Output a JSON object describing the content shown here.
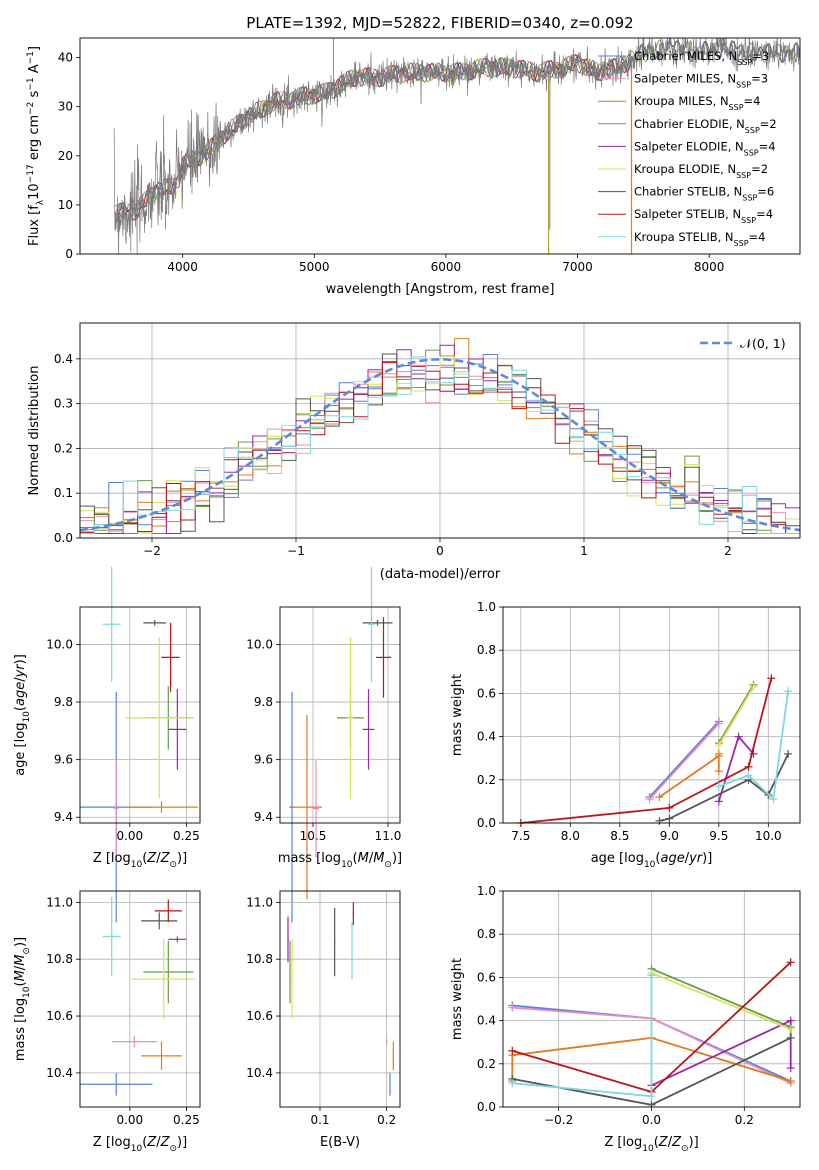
{
  "title": "PLATE=1392, MJD=52822, FIBERID=0340, z=0.092",
  "models": [
    {
      "key": "chabrier_miles",
      "label": "Chabrier MILES, N",
      "sub": "SSP",
      "suffix": "=3",
      "color": "#5b7fdc"
    },
    {
      "key": "salpeter_miles",
      "label": "Salpeter MILES, N",
      "sub": "SSP",
      "suffix": "=3",
      "color": "#e58fc1"
    },
    {
      "key": "kroupa_miles",
      "label": "Kroupa MILES, N",
      "sub": "SSP",
      "suffix": "=4",
      "color": "#e07b1f"
    },
    {
      "key": "chabrier_elodie",
      "label": "Chabrier ELODIE, N",
      "sub": "SSP",
      "suffix": "=2",
      "color": "#6a9a48"
    },
    {
      "key": "salpeter_elodie",
      "label": "Salpeter ELODIE, N",
      "sub": "SSP",
      "suffix": "=4",
      "color": "#9b27ad"
    },
    {
      "key": "kroupa_elodie",
      "label": "Kroupa ELODIE, N",
      "sub": "SSP",
      "suffix": "=2",
      "color": "#d8e25a"
    },
    {
      "key": "chabrier_stelib",
      "label": "Chabrier STELIB, N",
      "sub": "SSP",
      "suffix": "=6",
      "color": "#555555"
    },
    {
      "key": "salpeter_stelib",
      "label": "Salpeter STELIB, N",
      "sub": "SSP",
      "suffix": "=4",
      "color": "#b5171b"
    },
    {
      "key": "kroupa_stelib",
      "label": "Kroupa STELIB, N",
      "sub": "SSP",
      "suffix": "=4",
      "color": "#7fd7dd"
    }
  ],
  "chart_data": [
    {
      "id": "spectrum",
      "type": "line",
      "title": "PLATE=1392, MJD=52822, FIBERID=0340, z=0.092",
      "xlabel": "wavelength [Angstrom, rest frame]",
      "ylabel": "Flux [f_λ 10^-17 erg cm^-2 s^-1 A^-1]",
      "xlim": [
        3220,
        8690
      ],
      "ylim": [
        0,
        44
      ],
      "xticks": [
        4000,
        5000,
        6000,
        7000,
        8000
      ],
      "yticks": [
        0,
        10,
        20,
        30,
        40
      ],
      "continuum": [
        [
          3450,
          8
        ],
        [
          3650,
          9
        ],
        [
          3800,
          13
        ],
        [
          3950,
          14
        ],
        [
          4000,
          18
        ],
        [
          4200,
          21
        ],
        [
          4300,
          24
        ],
        [
          4500,
          28
        ],
        [
          4700,
          31
        ],
        [
          4900,
          32
        ],
        [
          5100,
          33
        ],
        [
          5300,
          36
        ],
        [
          5500,
          36
        ],
        [
          5700,
          37
        ],
        [
          5900,
          37
        ],
        [
          6100,
          37
        ],
        [
          6300,
          38
        ],
        [
          6500,
          38
        ],
        [
          6700,
          37
        ],
        [
          6900,
          38
        ],
        [
          7000,
          39
        ],
        [
          7150,
          37
        ],
        [
          7300,
          38
        ],
        [
          7500,
          41
        ],
        [
          7700,
          42
        ],
        [
          7900,
          41
        ],
        [
          8100,
          42
        ],
        [
          8300,
          41
        ],
        [
          8500,
          41
        ],
        [
          8690,
          41
        ]
      ],
      "spikes": [
        [
          5145,
          44
        ],
        [
          6780,
          36
        ],
        [
          7410,
          36
        ],
        [
          3870,
          5
        ],
        [
          6790,
          5
        ]
      ],
      "grid": false,
      "legend": "upper right"
    },
    {
      "id": "residual_hist",
      "type": "histogram",
      "xlabel": "(data-model)/error",
      "ylabel": "Normed distribution",
      "xlim": [
        -2.5,
        2.5
      ],
      "ylim": [
        0,
        0.48
      ],
      "xticks": [
        -2,
        -1,
        0,
        1,
        2
      ],
      "yticks": [
        0.0,
        0.1,
        0.2,
        0.3,
        0.4
      ],
      "bin_width": 0.1,
      "reference": "N(0,1)",
      "reference_label": "𝒩(0, 1)",
      "grid": true,
      "legend": "upper right"
    },
    {
      "id": "age_vs_Z",
      "type": "scatter",
      "xlabel": "Z [log10(Z/Z⊙)]",
      "ylabel": "age  [log10(age/yr)]",
      "xlim": [
        -0.22,
        0.31
      ],
      "ylim": [
        9.38,
        10.13
      ],
      "xticks": [
        0.0,
        0.25
      ],
      "yticks": [
        9.4,
        9.6,
        9.8,
        10.0
      ],
      "grid": true,
      "points": [
        {
          "model": "chabrier_miles",
          "x": -0.06,
          "y": 9.435,
          "xerr": 0.16,
          "yerr": 0.4
        },
        {
          "model": "salpeter_miles",
          "x": -0.06,
          "y": 9.43,
          "xerr": 0.01,
          "yerr": 0.17
        },
        {
          "model": "kroupa_miles",
          "x": 0.14,
          "y": 9.435,
          "xerr": 0.16,
          "yerr": 0.02
        },
        {
          "model": "chabrier_elodie",
          "x": 0.17,
          "y": 9.745,
          "xerr": 0.11,
          "yerr": 0.11
        },
        {
          "model": "salpeter_elodie",
          "x": 0.21,
          "y": 9.705,
          "xerr": 0.04,
          "yerr": 0.14
        },
        {
          "model": "kroupa_elodie",
          "x": 0.13,
          "y": 9.745,
          "xerr": 0.15,
          "yerr": 0.28
        },
        {
          "model": "chabrier_stelib",
          "x": 0.11,
          "y": 10.075,
          "xerr": 0.05,
          "yerr": 0.01
        },
        {
          "model": "salpeter_stelib",
          "x": 0.18,
          "y": 9.955,
          "xerr": 0.04,
          "yerr": 0.12
        },
        {
          "model": "kroupa_stelib",
          "x": -0.08,
          "y": 10.07,
          "xerr": 0.04,
          "yerr": 0.2
        }
      ]
    },
    {
      "id": "age_vs_mass",
      "type": "scatter",
      "xlabel": "mass [log10(M/M⊙)]",
      "ylabel": "",
      "xlim": [
        10.28,
        11.08
      ],
      "ylim": [
        9.38,
        10.13
      ],
      "xticks": [
        10.5,
        11.0
      ],
      "yticks": [
        9.4,
        9.6,
        9.8,
        10.0
      ],
      "grid": true,
      "points": [
        {
          "model": "chabrier_miles",
          "x": 10.36,
          "y": 9.435,
          "xerr": 0.02,
          "yerr": 0.4
        },
        {
          "model": "salpeter_miles",
          "x": 10.52,
          "y": 9.43,
          "xerr": 0.02,
          "yerr": 0.17
        },
        {
          "model": "kroupa_miles",
          "x": 10.46,
          "y": 9.435,
          "xerr": 0.1,
          "yerr": 0.32
        },
        {
          "model": "chabrier_elodie",
          "x": 10.75,
          "y": 9.745,
          "xerr": 0.09,
          "yerr": 0.1
        },
        {
          "model": "salpeter_elodie",
          "x": 10.87,
          "y": 9.705,
          "xerr": 0.04,
          "yerr": 0.14
        },
        {
          "model": "kroupa_elodie",
          "x": 10.75,
          "y": 9.745,
          "xerr": 0.02,
          "yerr": 0.28
        },
        {
          "model": "chabrier_stelib",
          "x": 10.93,
          "y": 10.075,
          "xerr": 0.1,
          "yerr": 0.01
        },
        {
          "model": "salpeter_stelib",
          "x": 10.97,
          "y": 9.955,
          "xerr": 0.05,
          "yerr": 0.14
        },
        {
          "model": "kroupa_stelib",
          "x": 10.89,
          "y": 10.07,
          "xerr": 0.02,
          "yerr": 0.2
        }
      ]
    },
    {
      "id": "massweight_vs_age",
      "type": "line",
      "xlabel": "age  [log10(age/yr)]",
      "ylabel": "mass weight",
      "xlim": [
        7.32,
        10.32
      ],
      "ylim": [
        0,
        1
      ],
      "xticks": [
        7.5,
        8.0,
        8.5,
        9.0,
        9.5,
        10.0
      ],
      "yticks": [
        0.0,
        0.2,
        0.4,
        0.6,
        0.8,
        1.0
      ],
      "grid": true,
      "series": [
        {
          "model": "chabrier_miles",
          "x": [
            8.8,
            9.5
          ],
          "y": [
            0.12,
            0.47
          ]
        },
        {
          "model": "salpeter_miles",
          "x": [
            8.8,
            9.5
          ],
          "y": [
            0.11,
            0.46
          ]
        },
        {
          "model": "kroupa_miles",
          "x": [
            8.9,
            9.5,
            9.5,
            9.5
          ],
          "y": [
            0.12,
            0.31,
            0.24,
            0.32
          ]
        },
        {
          "model": "chabrier_elodie",
          "x": [
            9.5,
            9.85
          ],
          "y": [
            0.37,
            0.64
          ]
        },
        {
          "model": "salpeter_elodie",
          "x": [
            9.5,
            9.7,
            9.85
          ],
          "y": [
            0.1,
            0.4,
            0.32
          ]
        },
        {
          "model": "kroupa_elodie",
          "x": [
            9.5,
            9.85
          ],
          "y": [
            0.36,
            0.63
          ]
        },
        {
          "model": "chabrier_stelib",
          "x": [
            8.9,
            9.0,
            9.8,
            10.0,
            10.2
          ],
          "y": [
            0.01,
            0.02,
            0.2,
            0.13,
            0.32
          ]
        },
        {
          "model": "salpeter_stelib",
          "x": [
            7.5,
            9.0,
            9.8,
            10.03
          ],
          "y": [
            0.0,
            0.07,
            0.26,
            0.67
          ]
        },
        {
          "model": "kroupa_stelib",
          "x": [
            9.5,
            9.8,
            10.05,
            10.2
          ],
          "y": [
            0.17,
            0.22,
            0.11,
            0.61
          ]
        }
      ]
    },
    {
      "id": "mass_vs_Z",
      "type": "scatter",
      "xlabel": "Z [log10(Z/Z⊙)]",
      "ylabel": "mass [log10(M/M⊙)]",
      "xlim": [
        -0.22,
        0.31
      ],
      "ylim": [
        10.28,
        11.04
      ],
      "xticks": [
        0.0,
        0.25
      ],
      "yticks": [
        10.4,
        10.6,
        10.8,
        11.0
      ],
      "grid": true,
      "points": [
        {
          "model": "chabrier_miles",
          "x": -0.06,
          "y": 10.36,
          "xerr": 0.16,
          "yerr": 0.04
        },
        {
          "model": "salpeter_miles",
          "x": 0.02,
          "y": 10.51,
          "xerr": 0.1,
          "yerr": 0.02
        },
        {
          "model": "kroupa_miles",
          "x": 0.14,
          "y": 10.46,
          "xerr": 0.09,
          "yerr": 0.05
        },
        {
          "model": "chabrier_elodie",
          "x": 0.17,
          "y": 10.755,
          "xerr": 0.11,
          "yerr": 0.11
        },
        {
          "model": "salpeter_elodie",
          "x": 0.21,
          "y": 10.87,
          "xerr": 0.04,
          "yerr": 0.01
        },
        {
          "model": "kroupa_elodie",
          "x": 0.15,
          "y": 10.73,
          "xerr": 0.14,
          "yerr": 0.14
        },
        {
          "model": "chabrier_stelib",
          "x": 0.13,
          "y": 10.935,
          "xerr": 0.08,
          "yerr": 0.03
        },
        {
          "model": "salpeter_stelib",
          "x": 0.17,
          "y": 10.97,
          "xerr": 0.06,
          "yerr": 0.04
        },
        {
          "model": "kroupa_stelib",
          "x": -0.08,
          "y": 10.88,
          "xerr": 0.04,
          "yerr": 0.14
        }
      ]
    },
    {
      "id": "mass_vs_ebv",
      "type": "scatter",
      "xlabel": "E(B-V)",
      "ylabel": "",
      "xlim": [
        0.04,
        0.22
      ],
      "ylim": [
        10.28,
        11.04
      ],
      "xticks": [
        0.1,
        0.2
      ],
      "yticks": [
        10.4,
        10.6,
        10.8,
        11.0
      ],
      "grid": true,
      "points": [
        {
          "model": "chabrier_miles",
          "x": 0.205,
          "y": 10.36,
          "xerr": 0.001,
          "yerr": 0.04
        },
        {
          "model": "salpeter_miles",
          "x": 0.2,
          "y": 10.51,
          "xerr": 0.001,
          "yerr": 0.01
        },
        {
          "model": "kroupa_miles",
          "x": 0.21,
          "y": 10.46,
          "xerr": 0.001,
          "yerr": 0.05
        },
        {
          "model": "chabrier_elodie",
          "x": 0.055,
          "y": 10.755,
          "xerr": 0.001,
          "yerr": 0.11
        },
        {
          "model": "salpeter_elodie",
          "x": 0.052,
          "y": 10.87,
          "xerr": 0.001,
          "yerr": 0.08
        },
        {
          "model": "kroupa_elodie",
          "x": 0.058,
          "y": 10.73,
          "xerr": 0.001,
          "yerr": 0.14
        },
        {
          "model": "chabrier_stelib",
          "x": 0.122,
          "y": 10.86,
          "xerr": 0.001,
          "yerr": 0.12
        },
        {
          "model": "salpeter_stelib",
          "x": 0.15,
          "y": 10.96,
          "xerr": 0.001,
          "yerr": 0.04
        },
        {
          "model": "kroupa_stelib",
          "x": 0.148,
          "y": 10.83,
          "xerr": 0.001,
          "yerr": 0.1
        }
      ]
    },
    {
      "id": "massweight_vs_Z",
      "type": "line",
      "xlabel": "Z [log10(Z/Z⊙)]",
      "ylabel": "mass weight",
      "xlim": [
        -0.32,
        0.32
      ],
      "ylim": [
        0,
        1
      ],
      "xticks": [
        -0.2,
        0.0,
        0.2
      ],
      "yticks": [
        0.0,
        0.2,
        0.4,
        0.6,
        0.8,
        1.0
      ],
      "grid": true,
      "series": [
        {
          "model": "chabrier_miles",
          "x": [
            -0.3,
            0.0,
            0.3
          ],
          "y": [
            0.47,
            0.41,
            0.12
          ]
        },
        {
          "model": "salpeter_miles",
          "x": [
            -0.3,
            0.0,
            0.3
          ],
          "y": [
            0.46,
            0.41,
            0.11
          ]
        },
        {
          "model": "kroupa_miles",
          "x": [
            -0.3,
            -0.3,
            0.0,
            0.3
          ],
          "y": [
            0.12,
            0.24,
            0.32,
            0.12
          ]
        },
        {
          "model": "chabrier_elodie",
          "x": [
            0.0,
            0.3
          ],
          "y": [
            0.64,
            0.37
          ]
        },
        {
          "model": "salpeter_elodie",
          "x": [
            0.0,
            0.3,
            0.3
          ],
          "y": [
            0.1,
            0.4,
            0.18
          ]
        },
        {
          "model": "kroupa_elodie",
          "x": [
            0.0,
            0.3
          ],
          "y": [
            0.62,
            0.36
          ]
        },
        {
          "model": "chabrier_stelib",
          "x": [
            -0.3,
            0.0,
            0.3
          ],
          "y": [
            0.13,
            0.01,
            0.32
          ]
        },
        {
          "model": "salpeter_stelib",
          "x": [
            -0.3,
            0.0,
            0.3
          ],
          "y": [
            0.26,
            0.07,
            0.67
          ]
        },
        {
          "model": "kroupa_stelib",
          "x": [
            -0.3,
            0.0,
            0.0
          ],
          "y": [
            0.11,
            0.05,
            0.61
          ]
        }
      ]
    }
  ]
}
